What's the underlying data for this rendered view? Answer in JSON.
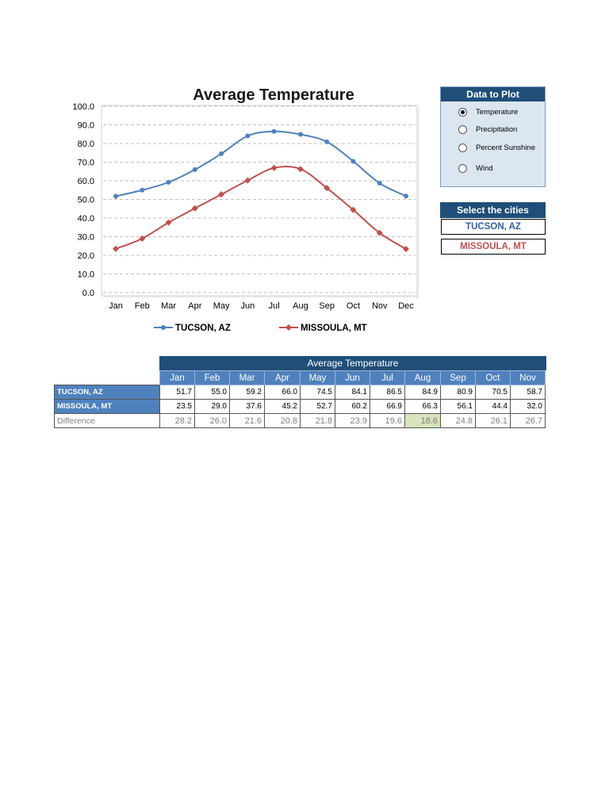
{
  "chart_data": {
    "type": "line",
    "title": "Average Temperature",
    "categories": [
      "Jan",
      "Feb",
      "Mar",
      "Apr",
      "May",
      "Jun",
      "Jul",
      "Aug",
      "Sep",
      "Oct",
      "Nov",
      "Dec"
    ],
    "series": [
      {
        "name": "TUCSON, AZ",
        "color": "#4f81bd",
        "marker": "circle",
        "values": [
          51.7,
          55.0,
          59.2,
          66.0,
          74.5,
          84.1,
          86.5,
          84.9,
          80.9,
          70.5,
          58.7,
          51.8
        ]
      },
      {
        "name": "MISSOULA, MT",
        "color": "#c0504d",
        "marker": "diamond",
        "values": [
          23.5,
          29.0,
          37.6,
          45.2,
          52.7,
          60.2,
          66.9,
          66.3,
          56.1,
          44.4,
          32.0,
          23.4
        ]
      }
    ],
    "ylim": [
      0,
      100
    ],
    "yticks": [
      "100.0",
      "90.0",
      "80.0",
      "70.0",
      "60.0",
      "50.0",
      "40.0",
      "30.0",
      "20.0",
      "10.0",
      "0.0"
    ],
    "grid": "horizontal-dashed",
    "legend_position": "bottom",
    "xlabel": "",
    "ylabel": ""
  },
  "data_panel": {
    "title": "Data to Plot",
    "options": [
      {
        "label": "Temperature",
        "selected": true
      },
      {
        "label": "Precipitation",
        "selected": false
      },
      {
        "label": "Percent Sunshine",
        "selected": false
      },
      {
        "label": "Wind",
        "selected": false
      }
    ]
  },
  "cities_panel": {
    "title": "Select the cities",
    "city1": "TUCSON, AZ",
    "city2": "MISSOULA, MT"
  },
  "table": {
    "title": "Average Temperature",
    "months": [
      "Jan",
      "Feb",
      "Mar",
      "Apr",
      "May",
      "Jun",
      "Jul",
      "Aug",
      "Sep",
      "Oct",
      "Nov"
    ],
    "rows": [
      {
        "label": "TUCSON, AZ",
        "values": [
          "51.7",
          "55.0",
          "59.2",
          "66.0",
          "74.5",
          "84.1",
          "86.5",
          "84.9",
          "80.9",
          "70.5",
          "58.7"
        ]
      },
      {
        "label": "MISSOULA, MT",
        "values": [
          "23.5",
          "29.0",
          "37.6",
          "45.2",
          "52.7",
          "60.2",
          "66.9",
          "66.3",
          "56.1",
          "44.4",
          "32.0"
        ]
      }
    ],
    "difference": {
      "label": "Difference",
      "values": [
        "28.2",
        "26.0",
        "21.6",
        "20.8",
        "21.8",
        "23.9",
        "19.6",
        "18.6",
        "24.8",
        "26.1",
        "26.7"
      ],
      "highlight_index": 7,
      "highlight_color": "#d7e4bc"
    },
    "colors": {
      "header": "#1f4e79",
      "month_fill": "#4f81bd"
    }
  }
}
